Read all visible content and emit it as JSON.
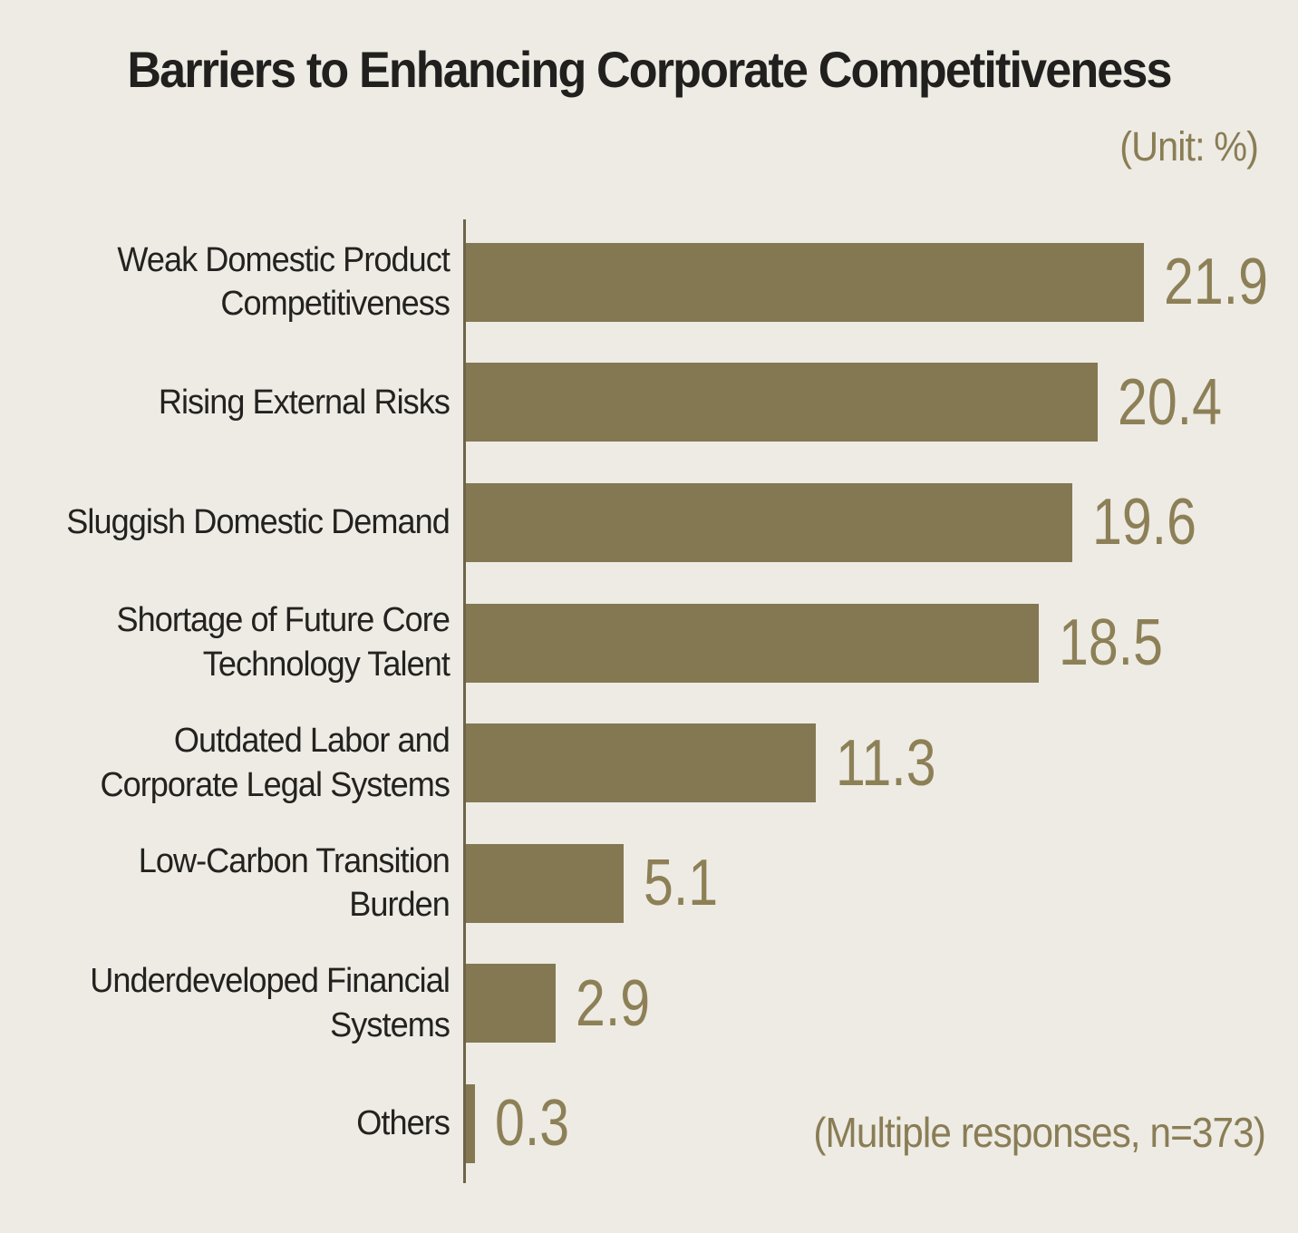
{
  "header": {
    "title": "Barriers to Enhancing Corporate Competitiveness",
    "unit_label": "(Unit: %)"
  },
  "footnote": "(Multiple responses, n=373)",
  "colors": {
    "background": "#EDEBE4",
    "bar": "#837852",
    "value_text": "#8D8057",
    "axis_line": "#6E6548",
    "label_text": "#23221F",
    "accent_olive": "#8A7D55"
  },
  "chart_data": {
    "type": "bar",
    "orientation": "horizontal",
    "title": "Barriers to Enhancing Corporate Competitiveness",
    "unit": "%",
    "note": "(Multiple responses, n=373)",
    "xlabel": "",
    "ylabel": "",
    "xlim": [
      0,
      25
    ],
    "grid": false,
    "legend": false,
    "categories": [
      "Weak Domestic Product Competitiveness",
      "Rising External Risks",
      "Sluggish Domestic Demand",
      "Shortage of Future Core Technology Talent",
      "Outdated Labor and Corporate Legal Systems",
      "Low-Carbon Transition Burden",
      "Underdeveloped Financial Systems",
      "Others"
    ],
    "label_lines": [
      [
        "Weak Domestic Product",
        "Competitiveness"
      ],
      [
        "Rising External Risks"
      ],
      [
        "Sluggish Domestic Demand"
      ],
      [
        "Shortage of Future Core",
        "Technology Talent"
      ],
      [
        "Outdated Labor and",
        "Corporate Legal Systems"
      ],
      [
        "Low-Carbon Transition",
        "Burden"
      ],
      [
        "Underdeveloped Financial",
        "Systems"
      ],
      [
        "Others"
      ]
    ],
    "values": [
      21.9,
      20.4,
      19.6,
      18.5,
      11.3,
      5.1,
      2.9,
      0.3
    ],
    "value_labels": [
      "21.9",
      "20.4",
      "19.6",
      "18.5",
      "11.3",
      "5.1",
      "2.9",
      "0.3"
    ]
  }
}
